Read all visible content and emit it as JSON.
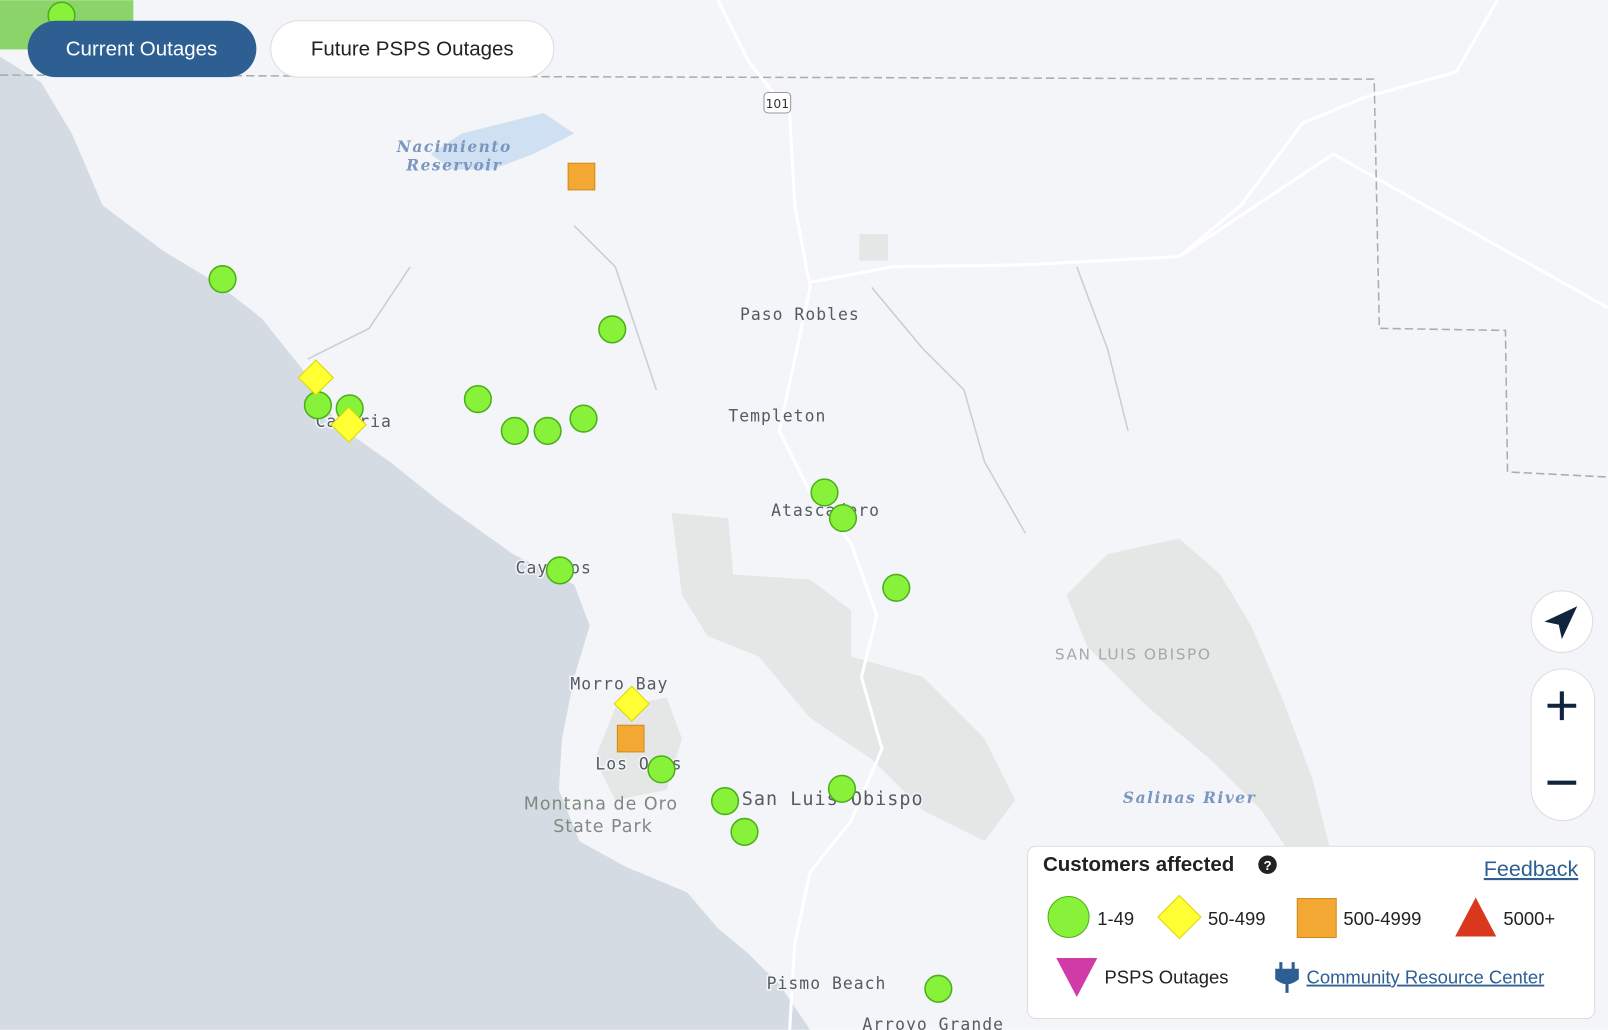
{
  "buttons": {
    "current": "Current Outages",
    "future": "Future PSPS Outages"
  },
  "map_labels": {
    "highway": "101",
    "reservoir_1": "Nacimiento",
    "reservoir_2": "Reservoir",
    "paso_robles": "Paso Robles",
    "templeton": "Templeton",
    "atascadero": "Atascadero",
    "cambria": "Cambria",
    "cayucos": "Cayucos",
    "county": "SAN LUIS OBISPO",
    "morro_bay": "Morro Bay",
    "los_osos": "Los Osos",
    "park_1": "Montana de Oro",
    "park_2": "State Park",
    "slo": "San Luis Obispo",
    "river": "Salinas River",
    "pismo": "Pismo Beach",
    "arroyo": "Arroyo Grande"
  },
  "legend": {
    "title": "Customers affected",
    "feedback": "Feedback",
    "items": [
      "1-49",
      "50-499",
      "500-4999",
      "5000+"
    ],
    "psps": "PSPS Outages",
    "resource": "Community Resource Center"
  }
}
